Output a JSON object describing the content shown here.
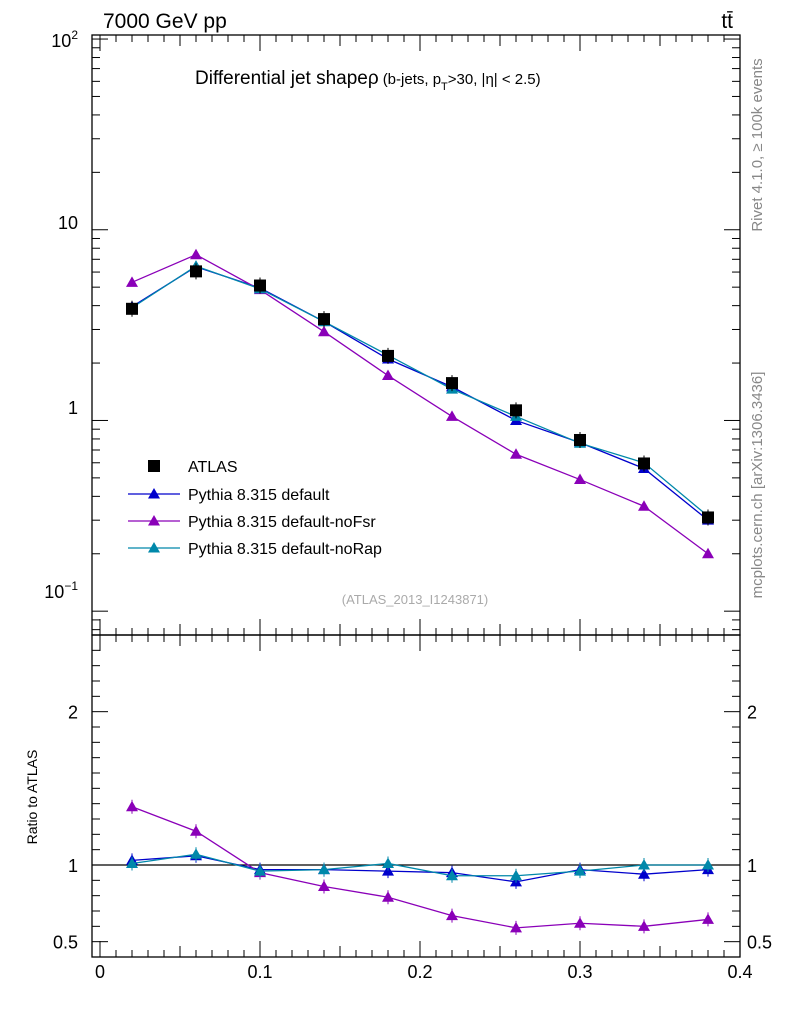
{
  "header": {
    "energy_label": "7000 GeV pp",
    "process_label": "tt̄"
  },
  "side_labels": {
    "rivet": "Rivet 4.1.0, ≥ 100k events",
    "mcplots": "mcplots.cern.ch [arXiv:1306.3436]"
  },
  "chart_data": {
    "type": "line",
    "title": "Differential jet shape",
    "title_symbol": "ρ",
    "subtitle_prefix": "(b-jets, p",
    "subtitle_sub": "T",
    "subtitle_suffix": ">30, |η| < 2.5)",
    "watermark": "(ATLAS_2013_I1243871)",
    "x": [
      0.02,
      0.06,
      0.1,
      0.14,
      0.18,
      0.22,
      0.26,
      0.3,
      0.34,
      0.38
    ],
    "xlim": [
      -0.005,
      0.4
    ],
    "x_ticks": [
      0,
      0.1,
      0.2,
      0.3,
      0.4
    ],
    "x_tick_labels": [
      "0",
      "0.1",
      "0.2",
      "0.3",
      "0.4"
    ],
    "yscale": "log",
    "ylim": [
      0.075,
      105
    ],
    "y_tick_labels": {
      "major_100_base": "10",
      "major_100_exp": "2",
      "major_10": "10",
      "major_1": "1",
      "major_01_base": "10",
      "major_01_exp": "−1"
    },
    "series": [
      {
        "name": "ATLAS",
        "marker": "square",
        "color": "#000000",
        "values": [
          3.85,
          6.05,
          5.1,
          3.4,
          2.18,
          1.57,
          1.13,
          0.79,
          0.595,
          0.31
        ]
      },
      {
        "name": "Pythia 8.315 default",
        "marker": "triangle",
        "color": "#0000cc",
        "values": [
          3.95,
          6.4,
          4.95,
          3.3,
          2.1,
          1.5,
          1.0,
          0.765,
          0.56,
          0.3
        ]
      },
      {
        "name": "Pythia 8.315 default-noFsr",
        "marker": "triangle",
        "color": "#8a00b8",
        "values": [
          5.3,
          7.4,
          4.85,
          2.92,
          1.72,
          1.05,
          0.665,
          0.49,
          0.355,
          0.2
        ]
      },
      {
        "name": "Pythia 8.315 default-noRap",
        "marker": "triangle",
        "color": "#0088aa",
        "values": [
          3.9,
          6.45,
          4.9,
          3.3,
          2.2,
          1.46,
          1.05,
          0.76,
          0.6,
          0.315
        ]
      }
    ],
    "ratio": {
      "ylabel": "Ratio to ATLAS",
      "ylim": [
        0.4,
        2.5
      ],
      "y_ticks": [
        0.5,
        1,
        2
      ],
      "y_tick_labels": [
        "0.5",
        "1",
        "2"
      ],
      "series": [
        {
          "name": "Pythia 8.315 default",
          "values": [
            1.03,
            1.06,
            0.97,
            0.97,
            0.96,
            0.95,
            0.89,
            0.97,
            0.94,
            0.97
          ]
        },
        {
          "name": "Pythia 8.315 default-noFsr",
          "values": [
            1.38,
            1.22,
            0.95,
            0.86,
            0.79,
            0.67,
            0.59,
            0.62,
            0.6,
            0.645
          ]
        },
        {
          "name": "Pythia 8.315 default-noRap",
          "values": [
            1.01,
            1.07,
            0.96,
            0.97,
            1.01,
            0.93,
            0.93,
            0.96,
            1.0,
            1.0
          ]
        }
      ]
    }
  }
}
